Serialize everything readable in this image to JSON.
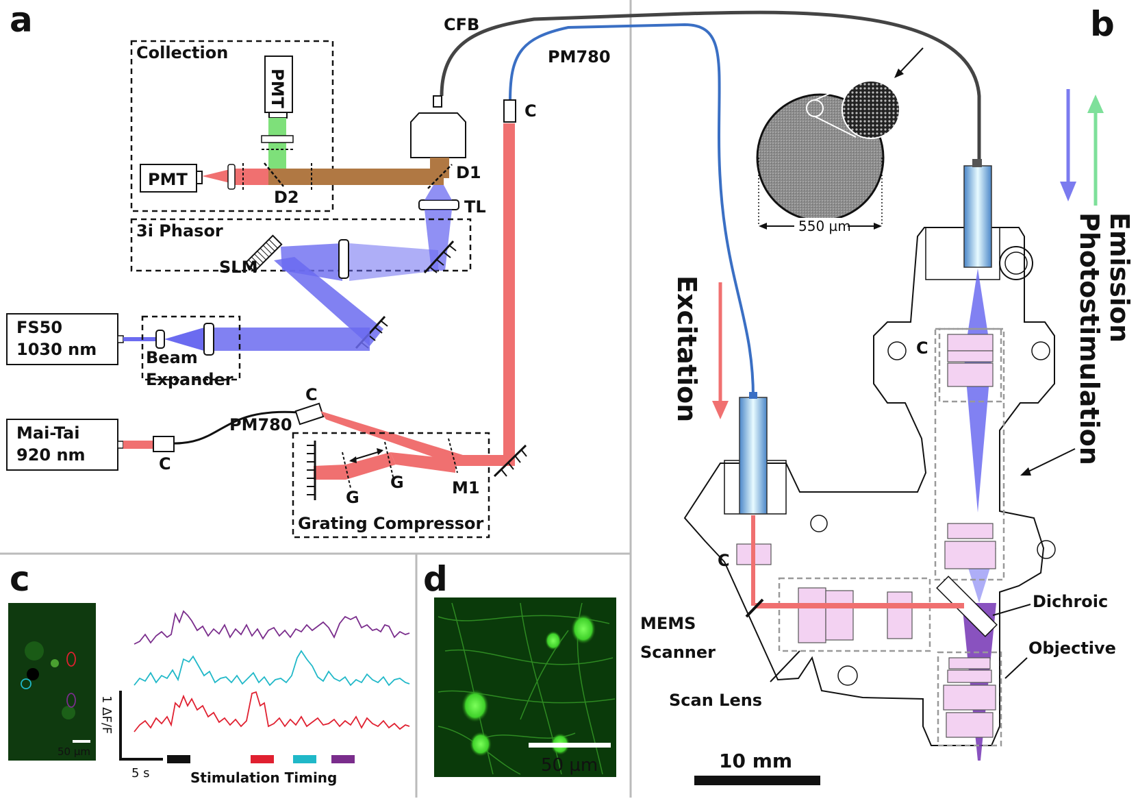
{
  "panel_a": {
    "letter": "a",
    "collection_box": "Collection",
    "pmt_top": "PMT",
    "pmt_left": "PMT",
    "d1": "D1",
    "d2": "D2",
    "tl": "TL",
    "phasor_box": "3i Phasor",
    "slm": "SLM",
    "fs50_line1": "FS50",
    "fs50_line2": "1030 nm",
    "beam_line1": "Beam",
    "beam_line2": "Expander",
    "maitai_line1": "Mai-Tai",
    "maitai_line2": "920 nm",
    "pm780_fiber": "PM780",
    "pm780_top": "PM780",
    "cfb": "CFB",
    "c_labels": [
      "C",
      "C",
      "C"
    ],
    "grating_box": "Grating Compressor",
    "g1": "G",
    "g2": "G",
    "m1": "M1"
  },
  "panel_b": {
    "letter": "b",
    "fiber_size": "550 µm",
    "excitation": "Excitation",
    "emission": "Emission",
    "photostim": "Photostimulation",
    "c_left": "C",
    "c_top": "C",
    "dichroic": "Dichroic",
    "objective": "Objective",
    "mems_line1": "MEMS",
    "mems_line2": "Scanner",
    "scan_lens": "Scan Lens",
    "scale": "10 mm"
  },
  "panel_c": {
    "letter": "c",
    "scale": "50 µm",
    "y_scale": "1 ΔF/F",
    "x_scale": "5 s",
    "timing_label": "Stimulation Timing"
  },
  "panel_d": {
    "letter": "d",
    "scale": "50 µm"
  },
  "colors": {
    "excitation": "#f07070",
    "photostim": "#6b6bf0",
    "emission": "#7ee09a",
    "fiber_pm": "#3a6fc4",
    "fiber_cfb": "#444444",
    "trace_purple": "#7a2d8c",
    "trace_cyan": "#20b8c8",
    "trace_red": "#e02030"
  }
}
